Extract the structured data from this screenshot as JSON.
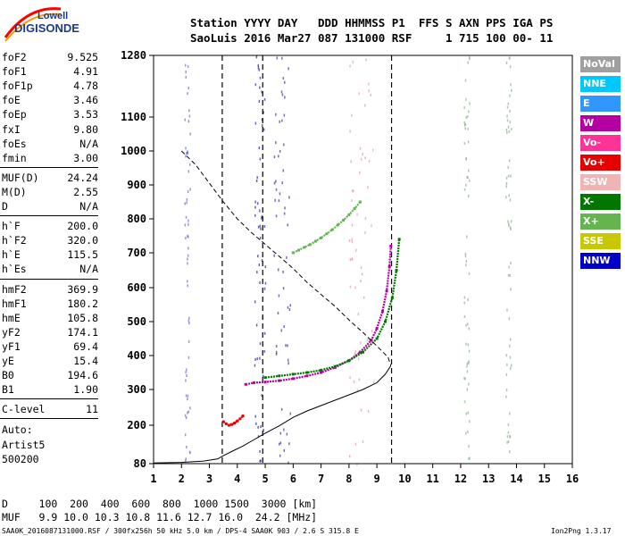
{
  "logo": {
    "line1": "Lowell",
    "line2": "DIGISONDE"
  },
  "header": {
    "row1": "Station YYYY DAY   DDD HHMMSS P1  FFS S AXN PPS IGA PS",
    "row2": "SaoLuis 2016 Mar27 087 131000 RSF     1 715 100 00- 11"
  },
  "params": {
    "g1": [
      {
        "name": "foF2",
        "value": "9.525"
      },
      {
        "name": "foF1",
        "value": "4.91"
      },
      {
        "name": "foF1p",
        "value": "4.78"
      },
      {
        "name": "foE",
        "value": "3.46"
      },
      {
        "name": "foEp",
        "value": "3.53"
      },
      {
        "name": "fxI",
        "value": "9.80"
      },
      {
        "name": "foEs",
        "value": "N/A"
      },
      {
        "name": "fmin",
        "value": "3.00"
      }
    ],
    "g2": [
      {
        "name": "MUF(D)",
        "value": "24.24"
      },
      {
        "name": "M(D)",
        "value": "2.55"
      },
      {
        "name": "D",
        "value": "N/A"
      }
    ],
    "g3": [
      {
        "name": "h`F",
        "value": "200.0"
      },
      {
        "name": "h`F2",
        "value": "320.0"
      },
      {
        "name": "h`E",
        "value": "115.5"
      },
      {
        "name": "h`Es",
        "value": "N/A"
      }
    ],
    "g4": [
      {
        "name": "hmF2",
        "value": "369.9"
      },
      {
        "name": "hmF1",
        "value": "180.2"
      },
      {
        "name": "hmE",
        "value": "105.8"
      },
      {
        "name": "yF2",
        "value": "174.1"
      },
      {
        "name": "yF1",
        "value": "69.4"
      },
      {
        "name": "yE",
        "value": "15.4"
      },
      {
        "name": "B0",
        "value": "194.6"
      },
      {
        "name": "B1",
        "value": "1.90"
      }
    ],
    "g5": [
      {
        "name": "C-level",
        "value": "11"
      }
    ],
    "auto": [
      "Auto:",
      "Artist5",
      "500200"
    ]
  },
  "legend": [
    {
      "label": "NoVal",
      "color": "#a0a0a0"
    },
    {
      "label": "NNE",
      "color": "#00c8ff"
    },
    {
      "label": "E",
      "color": "#3296ff"
    },
    {
      "label": "W",
      "color": "#b400a0"
    },
    {
      "label": "Vo-",
      "color": "#ff3296"
    },
    {
      "label": "Vo+",
      "color": "#e60000"
    },
    {
      "label": "SSW",
      "color": "#f0b4b4"
    },
    {
      "label": "X-",
      "color": "#007800"
    },
    {
      "label": "X+",
      "color": "#64b450"
    },
    {
      "label": "SSE",
      "color": "#c8c800"
    },
    {
      "label": "NNW",
      "color": "#0000c8"
    }
  ],
  "chart_data": {
    "type": "scatter",
    "title": "",
    "xlabel": "",
    "ylabel": "",
    "xlim": [
      1,
      16
    ],
    "ylim": [
      80,
      1280
    ],
    "y_scale": "nonlinear",
    "x_ticks": [
      1,
      2,
      3,
      4,
      5,
      6,
      7,
      8,
      9,
      10,
      11,
      12,
      13,
      14,
      15,
      16
    ],
    "y_ticks": [
      80,
      200,
      300,
      400,
      500,
      600,
      700,
      800,
      900,
      1000,
      1100,
      1280
    ],
    "vertical_markers": [
      4.91,
      3.46,
      9.525
    ],
    "series": [
      {
        "color": "#b400a0",
        "style": "points",
        "x": [
          4.3,
          4.6,
          5.0,
          5.5,
          6.0,
          6.5,
          7.0,
          7.5,
          8.0,
          8.4,
          8.8,
          9.0,
          9.2,
          9.35,
          9.45,
          9.5
        ],
        "y": [
          315,
          320,
          322,
          326,
          332,
          340,
          350,
          365,
          385,
          410,
          445,
          480,
          530,
          590,
          660,
          720
        ]
      },
      {
        "color": "#007800",
        "style": "points",
        "x": [
          5.0,
          5.5,
          6.0,
          6.5,
          7.0,
          7.5,
          8.0,
          8.5,
          9.0,
          9.3,
          9.55,
          9.7,
          9.8
        ],
        "y": [
          335,
          340,
          345,
          350,
          357,
          368,
          385,
          410,
          450,
          500,
          570,
          650,
          740
        ]
      },
      {
        "color": "#e60000",
        "style": "points",
        "x": [
          3.5,
          3.6,
          3.7,
          3.8,
          3.9,
          4.0,
          4.1,
          4.2
        ],
        "y": [
          210,
          204,
          200,
          202,
          206,
          212,
          218,
          226
        ]
      },
      {
        "color": "#64b450",
        "style": "points",
        "x": [
          6.0,
          6.2,
          6.4,
          6.6,
          6.8,
          7.0,
          7.2,
          7.4,
          7.6,
          7.8,
          8.0,
          8.2,
          8.4
        ],
        "y": [
          700,
          708,
          716,
          724,
          734,
          744,
          756,
          768,
          782,
          796,
          812,
          830,
          850
        ]
      },
      {
        "color": "#000000",
        "style": "solid-line",
        "x": [
          1.0,
          2.0,
          2.8,
          3.3,
          3.5,
          3.8,
          4.2,
          4.6,
          5.0,
          5.5,
          6.0,
          6.5,
          7.0,
          7.5,
          8.0,
          8.5,
          9.0,
          9.3,
          9.5
        ],
        "y": [
          82,
          84,
          88,
          95,
          105,
          118,
          135,
          155,
          175,
          198,
          222,
          240,
          255,
          270,
          285,
          300,
          320,
          345,
          370
        ]
      },
      {
        "color": "#000000",
        "style": "dashed-line",
        "x": [
          2.0,
          2.5,
          3.0,
          3.5,
          4.0,
          4.5,
          5.0,
          5.5,
          6.0,
          6.5,
          7.0,
          7.5,
          8.0,
          8.5,
          9.0,
          9.4,
          9.5
        ],
        "y": [
          1000,
          960,
          905,
          850,
          800,
          760,
          725,
          690,
          655,
          615,
          580,
          545,
          505,
          468,
          428,
          395,
          370
        ]
      }
    ]
  },
  "footer": {
    "row1": "D     100  200  400  600  800  1000 1500  3000 [km]",
    "row2": "MUF   9.9 10.0 10.3 10.8 11.6 12.7 16.0  24.2 [MHz]",
    "file": "SAA0K_2016087131000.RSF / 300fx256h 50 kHz 5.0 km / DPS-4 SAA0K 903 / 2.6 S 315.8 E",
    "version": "Ion2Png 1.3.17"
  }
}
